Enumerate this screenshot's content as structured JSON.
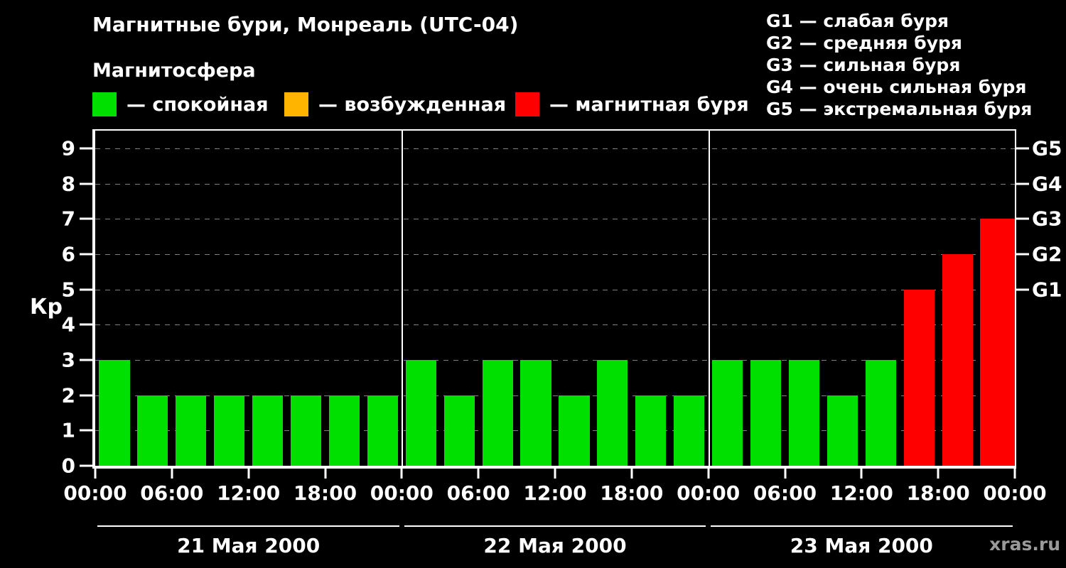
{
  "header": {
    "title": "Магнитные бури, Монреаль (UTC-04)",
    "subtitle": "Магнитосфера"
  },
  "legend": {
    "items": [
      {
        "name": "quiet",
        "label": "— спокойная",
        "swatch_color": "#00e000"
      },
      {
        "name": "excited",
        "label": "— возбужденная",
        "swatch_color": "#ffb400"
      },
      {
        "name": "storm",
        "label": "— магнитная буря",
        "swatch_color": "#ff0000"
      }
    ]
  },
  "g_scale_legend": {
    "lines": [
      "G1 — слабая буря",
      "G2 — средняя буря",
      "G3 — сильная буря",
      "G4 — очень сильная буря",
      "G5 — экстремальная буря"
    ]
  },
  "chart_data": {
    "type": "bar",
    "ylabel": "Кр",
    "ylim": [
      0,
      9.5
    ],
    "y_ticks": [
      0,
      1,
      2,
      3,
      4,
      5,
      6,
      7,
      8,
      9
    ],
    "grid": "horizontal-dashed",
    "interval_hours": 3,
    "total_hours": 72,
    "x_tick_step_hours": 6,
    "x_tick_labels": [
      "00:00",
      "06:00",
      "12:00",
      "18:00",
      "00:00",
      "06:00",
      "12:00",
      "18:00",
      "00:00",
      "06:00",
      "12:00",
      "18:00",
      "00:00"
    ],
    "right_axis_labels": [
      {
        "label": "G1",
        "kp": 5
      },
      {
        "label": "G2",
        "kp": 6
      },
      {
        "label": "G3",
        "kp": 7
      },
      {
        "label": "G4",
        "kp": 8
      },
      {
        "label": "G5",
        "kp": 9
      }
    ],
    "days": [
      {
        "date": "21 Мая 2000",
        "values": [
          3,
          2,
          2,
          2,
          2,
          2,
          2,
          2
        ]
      },
      {
        "date": "22 Мая 2000",
        "values": [
          3,
          2,
          3,
          3,
          2,
          3,
          2,
          2
        ]
      },
      {
        "date": "23 Мая 2000",
        "values": [
          3,
          3,
          3,
          2,
          3,
          5,
          6,
          7
        ]
      }
    ],
    "partial_next_value": 7,
    "color_thresholds": {
      "quiet_max": 3,
      "excited_max": 4
    }
  },
  "watermark": "xras.ru"
}
